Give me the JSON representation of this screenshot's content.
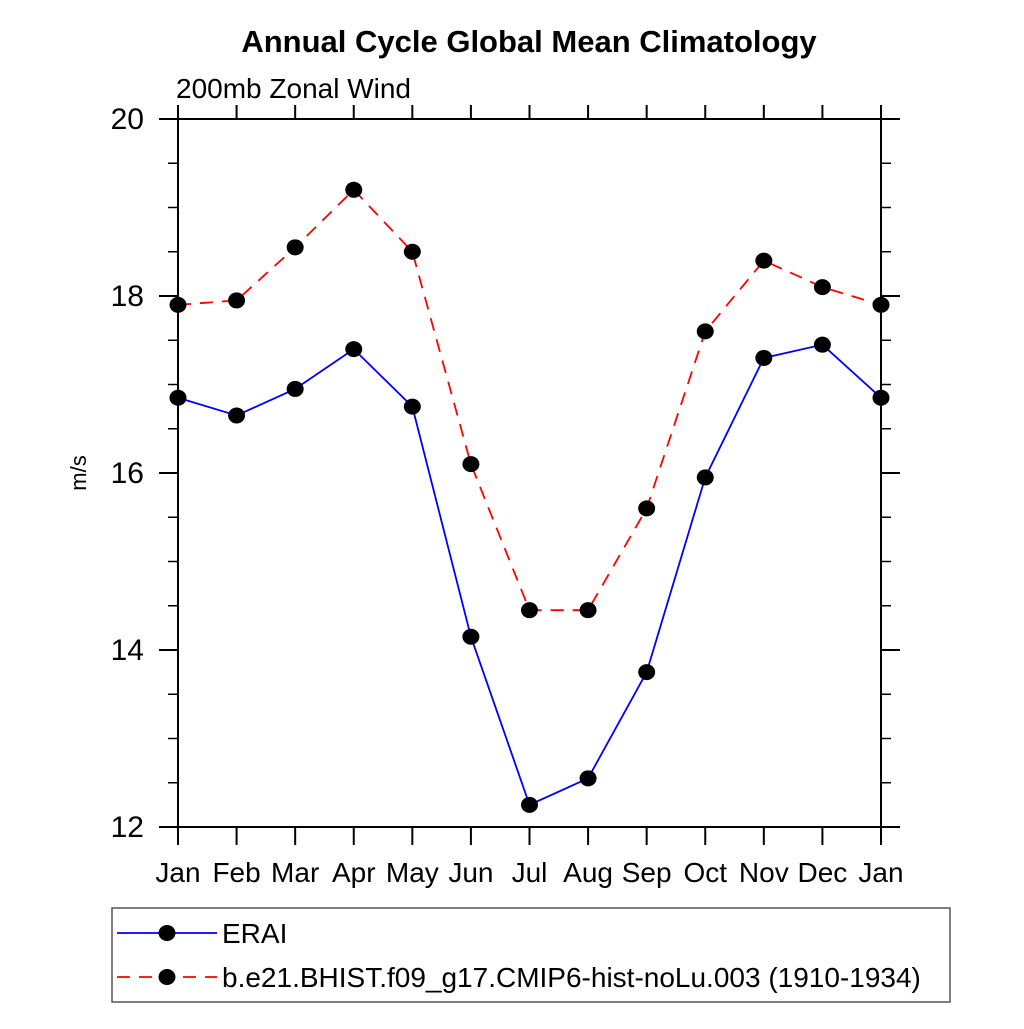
{
  "chart_data": {
    "type": "line",
    "title": "Annual Cycle Global Mean Climatology",
    "subtitle": "200mb Zonal Wind",
    "ylabel": "m/s",
    "xlabel": "",
    "categories": [
      "Jan",
      "Feb",
      "Mar",
      "Apr",
      "May",
      "Jun",
      "Jul",
      "Aug",
      "Sep",
      "Oct",
      "Nov",
      "Dec",
      "Jan"
    ],
    "ylim": [
      12,
      20
    ],
    "ytick_major": [
      12,
      14,
      16,
      18,
      20
    ],
    "ytick_major_labels": [
      "12",
      "14",
      "16",
      "18",
      "20"
    ],
    "ytick_minor_step": 0.5,
    "grid": "off",
    "legend_position": "bottom-left-box",
    "axis_color": "#000000",
    "marker": {
      "shape": "circle",
      "color": "#000000"
    },
    "series": [
      {
        "name": "ERAI",
        "color": "#0000ff",
        "style": "solid",
        "values": [
          16.85,
          16.65,
          16.95,
          17.4,
          16.75,
          14.15,
          12.25,
          12.55,
          13.75,
          15.95,
          17.3,
          17.45,
          16.85
        ]
      },
      {
        "name": "b.e21.BHIST.f09_g17.CMIP6-hist-noLu.003 (1910-1934)",
        "color": "#ff0000",
        "style": "dashed",
        "values": [
          17.9,
          17.95,
          18.55,
          19.2,
          18.5,
          16.1,
          14.45,
          14.45,
          15.6,
          17.6,
          18.4,
          18.1,
          17.9
        ]
      }
    ]
  }
}
